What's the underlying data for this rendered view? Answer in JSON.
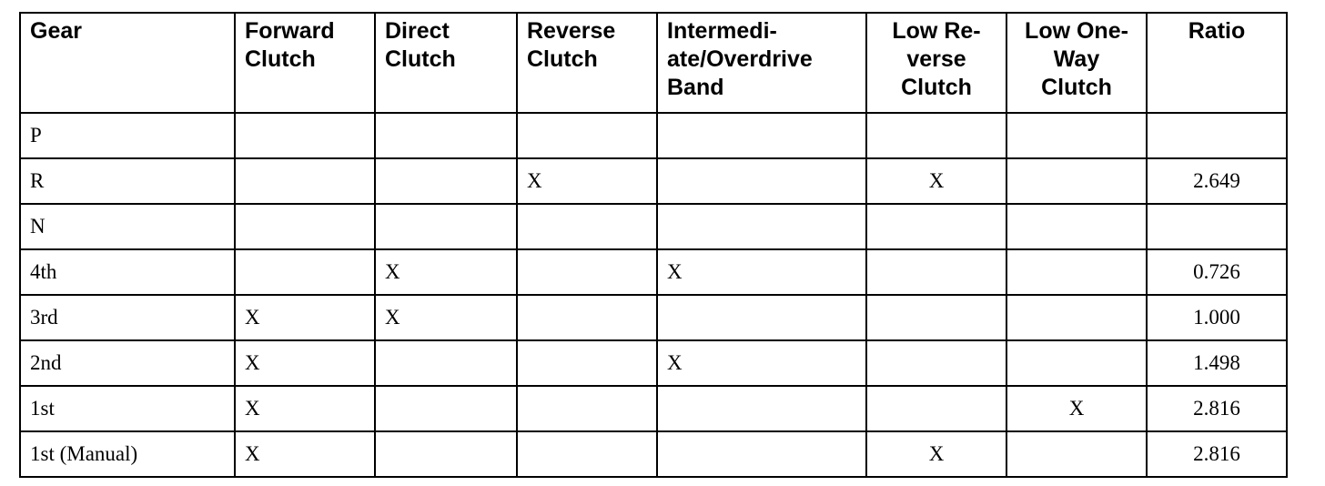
{
  "table": {
    "headers": [
      "Gear",
      "Forward Clutch",
      "Direct Clutch",
      "Reverse Clutch",
      "Intermedi-ate/Overdrive Band",
      "Low Re-verse Clutch",
      "Low One-Way Clutch",
      "Ratio"
    ],
    "header_lines": [
      [
        "Gear"
      ],
      [
        "Forward",
        "Clutch"
      ],
      [
        "Direct",
        "Clutch"
      ],
      [
        "Reverse",
        "Clutch"
      ],
      [
        "Intermedi-",
        "ate/Overdrive",
        "Band"
      ],
      [
        "Low Re-",
        "verse",
        "Clutch"
      ],
      [
        "Low One-",
        "Way",
        "Clutch"
      ],
      [
        "Ratio"
      ]
    ],
    "rows": [
      [
        "P",
        "",
        "",
        "",
        "",
        "",
        "",
        ""
      ],
      [
        "R",
        "",
        "",
        "X",
        "",
        "X",
        "",
        "2.649"
      ],
      [
        "N",
        "",
        "",
        "",
        "",
        "",
        "",
        ""
      ],
      [
        "4th",
        "",
        "X",
        "",
        "X",
        "",
        "",
        "0.726"
      ],
      [
        "3rd",
        "X",
        "X",
        "",
        "",
        "",
        "",
        "1.000"
      ],
      [
        "2nd",
        "X",
        "",
        "",
        "X",
        "",
        "",
        "1.498"
      ],
      [
        "1st",
        "X",
        "",
        "",
        "",
        "",
        "X",
        "2.816"
      ],
      [
        "1st (Manual)",
        "X",
        "",
        "",
        "",
        "X",
        "",
        "2.816"
      ]
    ]
  }
}
